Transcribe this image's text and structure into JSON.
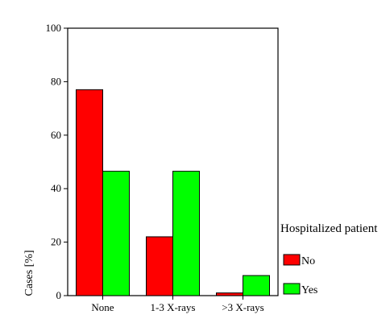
{
  "chart_data": {
    "type": "bar",
    "xlabel": "",
    "ylabel": "Cases [%]",
    "ylim": [
      0,
      100
    ],
    "yticks": [
      0,
      20,
      40,
      60,
      80,
      100
    ],
    "categories": [
      "None",
      "1-3 X-rays",
      ">3 X-rays"
    ],
    "series": [
      {
        "name": "No",
        "color": "#ff0000",
        "values": [
          77,
          22,
          1
        ]
      },
      {
        "name": "Yes",
        "color": "#00ff00",
        "values": [
          46.5,
          46.5,
          7.5
        ]
      }
    ],
    "legend": {
      "title": "Hospitalized patient",
      "position": "right"
    },
    "grid": false
  }
}
